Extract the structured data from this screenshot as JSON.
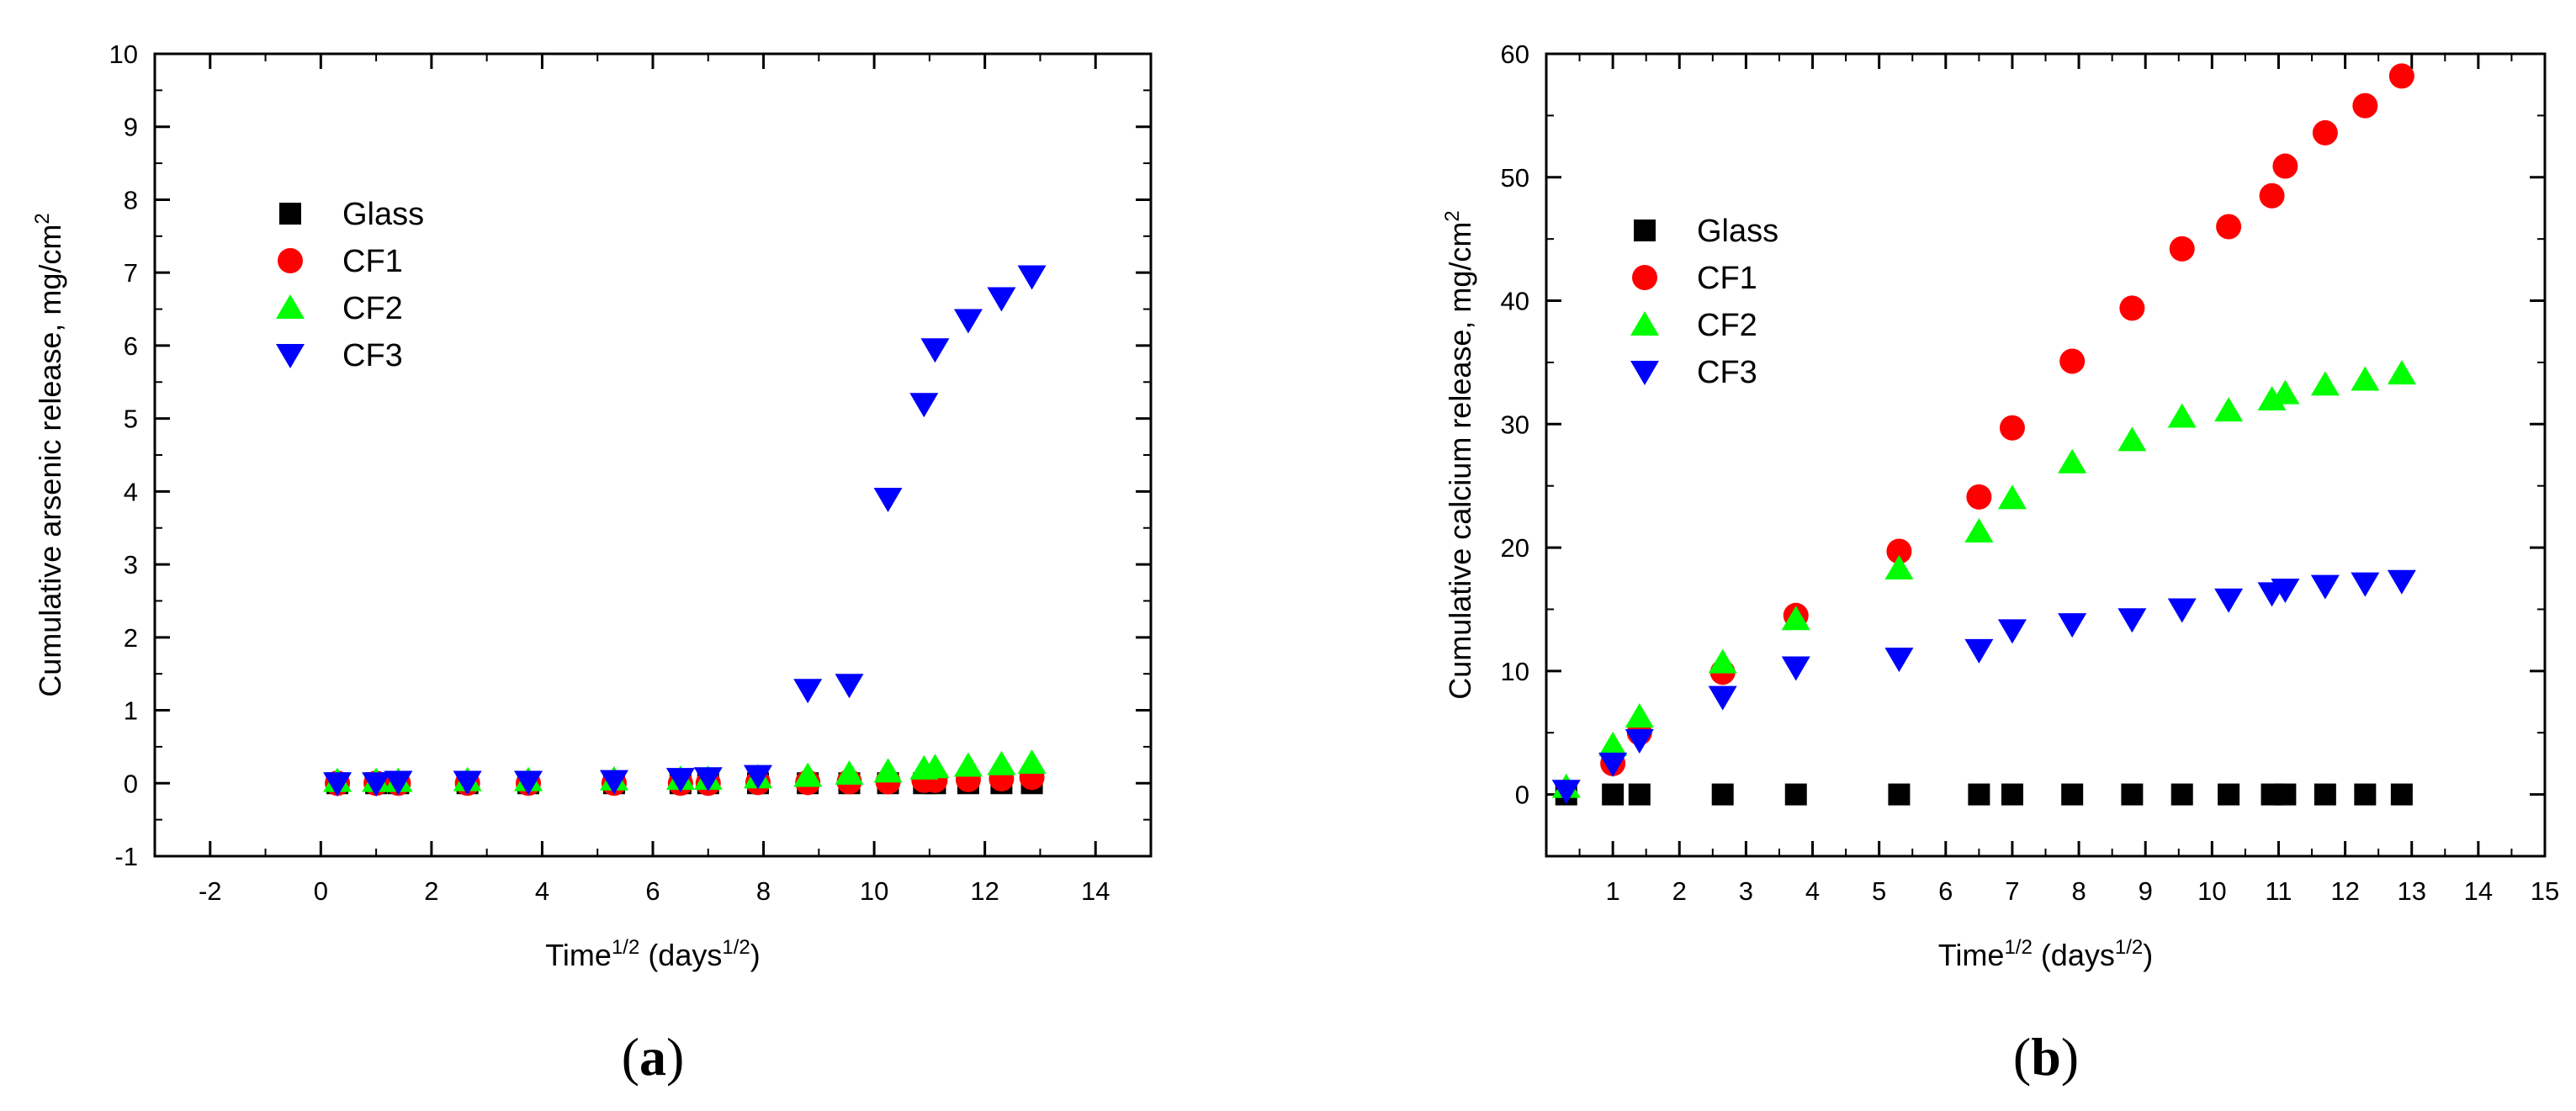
{
  "chart_data": [
    {
      "type": "scatter",
      "panel_label": "a",
      "xlabel": "Time",
      "xlabel_sup": "1/2",
      "xlabel_unit": " (days",
      "xlabel_unit_sup": "1/2",
      "xlabel_close": ")",
      "ylabel": "Cumulative arsenic release, mg/cm",
      "ylabel_sup": "2",
      "xlim": [
        -3,
        15
      ],
      "ylim": [
        -1,
        10
      ],
      "xticks": [
        -2,
        0,
        2,
        4,
        6,
        8,
        10,
        12,
        14
      ],
      "yticks": [
        -1,
        0,
        1,
        2,
        3,
        4,
        5,
        6,
        7,
        8,
        9,
        10
      ],
      "legend_position": "upper-left",
      "series": [
        {
          "name": "Glass",
          "marker": "square",
          "color": "#000000",
          "x": [
            0.3,
            1.0,
            1.4,
            2.65,
            3.75,
            5.3,
            6.5,
            7.0,
            7.9,
            8.8,
            9.55,
            10.25,
            10.9,
            11.1,
            11.7,
            12.3,
            12.85
          ],
          "y": [
            0,
            0,
            0,
            0,
            0,
            0,
            0,
            0,
            0,
            0,
            0,
            0,
            0,
            0,
            0,
            0,
            0
          ]
        },
        {
          "name": "CF1",
          "marker": "circle",
          "color": "#ff0000",
          "x": [
            0.3,
            1.0,
            1.4,
            2.65,
            3.75,
            5.3,
            6.5,
            7.0,
            7.9,
            8.8,
            9.55,
            10.25,
            10.9,
            11.1,
            11.7,
            12.3,
            12.85
          ],
          "y": [
            0,
            0,
            0,
            0,
            0,
            0,
            0,
            0,
            0.01,
            0.01,
            0.02,
            0.02,
            0.04,
            0.04,
            0.05,
            0.06,
            0.08
          ]
        },
        {
          "name": "CF2",
          "marker": "triangle-up",
          "color": "#00ff00",
          "x": [
            0.3,
            1.0,
            1.4,
            2.65,
            3.75,
            5.3,
            6.5,
            7.0,
            7.9,
            8.8,
            9.55,
            10.25,
            10.9,
            11.1,
            11.7,
            12.3,
            12.85
          ],
          "y": [
            0.03,
            0.03,
            0.03,
            0.04,
            0.04,
            0.05,
            0.06,
            0.06,
            0.08,
            0.1,
            0.13,
            0.16,
            0.2,
            0.22,
            0.24,
            0.26,
            0.28
          ]
        },
        {
          "name": "CF3",
          "marker": "triangle-down",
          "color": "#0000ff",
          "x": [
            0.3,
            1.0,
            1.4,
            2.65,
            3.75,
            5.3,
            6.5,
            7.0,
            7.9,
            8.8,
            9.55,
            10.25,
            10.9,
            11.1,
            11.7,
            12.3,
            12.85
          ],
          "y": [
            0,
            0,
            0.02,
            0.02,
            0.02,
            0.03,
            0.06,
            0.07,
            0.1,
            1.28,
            1.35,
            3.9,
            5.2,
            5.95,
            6.35,
            6.65,
            6.95
          ]
        }
      ]
    },
    {
      "type": "scatter",
      "panel_label": "b",
      "xlabel": "Time",
      "xlabel_sup": "1/2",
      "xlabel_unit": " (days",
      "xlabel_unit_sup": "1/2",
      "xlabel_close": ")",
      "ylabel": "Cumulative calcium release, mg/cm",
      "ylabel_sup": "2",
      "xlim": [
        0,
        15
      ],
      "ylim": [
        -5,
        60
      ],
      "xticks": [
        1,
        2,
        3,
        4,
        5,
        6,
        7,
        8,
        9,
        10,
        11,
        12,
        13,
        14,
        15
      ],
      "yticks": [
        0,
        10,
        20,
        30,
        40,
        50,
        60
      ],
      "legend_position": "upper-left",
      "series": [
        {
          "name": "Glass",
          "marker": "square",
          "color": "#000000",
          "x": [
            0.3,
            1.0,
            1.4,
            2.65,
            3.75,
            5.3,
            6.5,
            7.0,
            7.9,
            8.8,
            9.55,
            10.25,
            10.9,
            11.1,
            11.7,
            12.3,
            12.85
          ],
          "y": [
            0,
            0,
            0,
            0,
            0,
            0,
            0,
            0,
            0,
            0,
            0,
            0,
            0,
            0,
            0,
            0,
            0
          ]
        },
        {
          "name": "CF1",
          "marker": "circle",
          "color": "#ff0000",
          "x": [
            1.0,
            1.4,
            2.65,
            3.75,
            5.3,
            6.5,
            7.0,
            7.9,
            8.8,
            9.55,
            10.25,
            10.9,
            11.1,
            11.7,
            12.3,
            12.85
          ],
          "y": [
            2.5,
            5.0,
            9.9,
            14.5,
            19.7,
            24.1,
            29.7,
            35.1,
            39.4,
            44.2,
            46.0,
            48.5,
            50.9,
            53.6,
            55.8,
            58.2
          ]
        },
        {
          "name": "CF2",
          "marker": "triangle-up",
          "color": "#00ff00",
          "x": [
            0.3,
            1.0,
            1.4,
            2.65,
            3.75,
            5.3,
            6.5,
            7.0,
            7.9,
            8.8,
            9.55,
            10.25,
            10.9,
            11.1,
            11.7,
            12.3,
            12.85
          ],
          "y": [
            0.6,
            4.0,
            6.3,
            10.7,
            14.2,
            18.3,
            21.3,
            24.0,
            26.9,
            28.7,
            30.6,
            31.1,
            32.0,
            32.5,
            33.2,
            33.6,
            34.1
          ]
        },
        {
          "name": "CF3",
          "marker": "triangle-down",
          "color": "#0000ff",
          "x": [
            0.3,
            1.0,
            1.4,
            2.65,
            3.75,
            5.3,
            6.5,
            7.0,
            7.9,
            8.8,
            9.55,
            10.25,
            10.9,
            11.1,
            11.7,
            12.3,
            12.85
          ],
          "y": [
            0.3,
            2.5,
            4.4,
            7.9,
            10.3,
            11.0,
            11.7,
            13.3,
            13.8,
            14.2,
            15.0,
            15.8,
            16.3,
            16.6,
            16.9,
            17.1,
            17.3
          ]
        }
      ]
    }
  ]
}
